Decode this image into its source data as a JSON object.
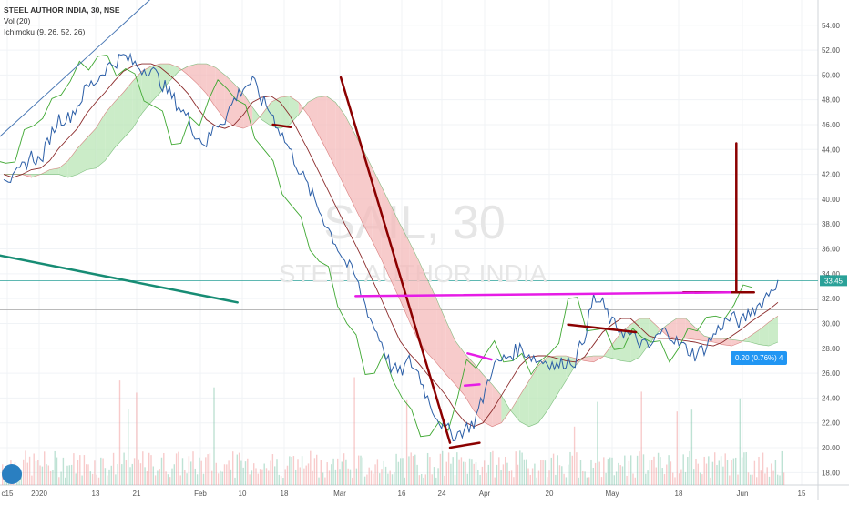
{
  "header": {
    "symbol": "STEEL AUTHOR INDIA, 30, NSE",
    "volume_label": "Vol (20)",
    "ichimoku_label": "Ichimoku (9, 26, 52, 26)"
  },
  "watermark": {
    "symbol": "SAIL, 30",
    "name": "STEEL AUTHOR INDIA"
  },
  "badges": {
    "change": "0.20 (0.76%) 4",
    "last_price": "33.45"
  },
  "colors": {
    "price": "#2b5ea7",
    "ichimoku_base": "#8b2a2a",
    "lagging": "#3fa832",
    "cloud_bull": "#b9e6b5",
    "cloud_bear": "#f4b9b9",
    "trend_dark_red": "#8b0000",
    "magenta": "#e61ce6",
    "teal": "#178c74",
    "price_line": "#2aa198"
  },
  "chart_data": {
    "type": "line",
    "x_labels": [
      "c15",
      "2020",
      "13",
      "21",
      "Feb",
      "10",
      "18",
      "Mar",
      "16",
      "24",
      "Apr",
      "20",
      "May",
      "18",
      "Jun",
      "15"
    ],
    "y_ticks": [
      "18.00",
      "20.00",
      "22.00",
      "24.00",
      "26.00",
      "28.00",
      "30.00",
      "32.00",
      "34.00",
      "36.00",
      "38.00",
      "40.00",
      "42.00",
      "44.00",
      "46.00",
      "48.00",
      "50.00",
      "52.00",
      "54.00"
    ],
    "ylim": [
      17,
      55.3
    ],
    "last_price": 33.45,
    "series": [
      {
        "values": [
          42.0,
          41.5,
          42.5,
          43.5,
          43.0,
          45.0,
          46.5,
          46.5,
          47.5,
          49.0,
          49.5,
          50.5,
          51.0,
          51.5,
          51.0,
          50.5,
          50.5,
          49.5,
          48.5,
          47.5,
          46.5,
          45.0,
          44.5,
          46.0,
          46.5,
          48.0,
          49.0,
          49.5,
          48.0,
          47.0,
          45.5,
          44.0,
          42.5,
          41.0,
          39.5,
          38.0,
          36.5,
          35.0,
          34.0,
          32.0,
          30.0,
          28.5,
          26.5,
          26.0,
          27.0,
          26.0,
          24.0,
          22.5,
          21.5,
          21.0,
          21.5,
          22.0,
          24.0,
          26.5,
          27.0,
          27.5,
          28.0,
          27.5,
          27.0,
          27.0,
          26.5,
          27.0,
          27.0,
          29.0,
          32.0,
          31.5,
          30.0,
          29.5,
          29.0,
          28.5,
          28.0,
          29.0,
          29.5,
          28.5,
          28.0,
          27.5,
          28.0,
          29.0,
          30.0,
          30.5,
          30.0,
          31.0,
          31.5,
          32.5,
          33.5
        ]
      }
    ],
    "annotations": [
      {
        "kind": "trend",
        "color": "dark-red",
        "x": [
          11.3,
          15.0
        ],
        "y": [
          49.8,
          20.4
        ]
      },
      {
        "kind": "trend",
        "color": "dark-red",
        "x": [
          15.0,
          16.0
        ],
        "y": [
          20.0,
          20.4
        ]
      },
      {
        "kind": "trend",
        "color": "dark-red",
        "x": [
          24.7,
          24.7
        ],
        "y": [
          32.6,
          44.5
        ]
      },
      {
        "kind": "trend",
        "color": "dark-red",
        "x": [
          22.9,
          25.3
        ],
        "y": [
          32.5,
          32.5
        ]
      },
      {
        "kind": "trend",
        "color": "dark-red",
        "x": [
          9.0,
          9.6
        ],
        "y": [
          46.0,
          45.8
        ]
      },
      {
        "kind": "trend",
        "color": "dark-red",
        "x": [
          19.0,
          21.3
        ],
        "y": [
          29.9,
          29.3
        ]
      },
      {
        "kind": "trend",
        "color": "magenta",
        "x": [
          11.8,
          24.5
        ],
        "y": [
          32.2,
          32.5
        ]
      },
      {
        "kind": "trend",
        "color": "magenta",
        "x": [
          15.6,
          16.4
        ],
        "y": [
          27.6,
          27.1
        ]
      },
      {
        "kind": "trend",
        "color": "magenta",
        "x": [
          15.5,
          16.0
        ],
        "y": [
          25.0,
          25.1
        ]
      },
      {
        "kind": "trend",
        "color": "teal",
        "x": [
          -3.5,
          7.8
        ],
        "y": [
          37.0,
          31.7
        ]
      },
      {
        "kind": "trend",
        "color": "blue",
        "x": [
          -3.5,
          5.5
        ],
        "y": [
          38.0,
          57.5
        ]
      }
    ]
  }
}
